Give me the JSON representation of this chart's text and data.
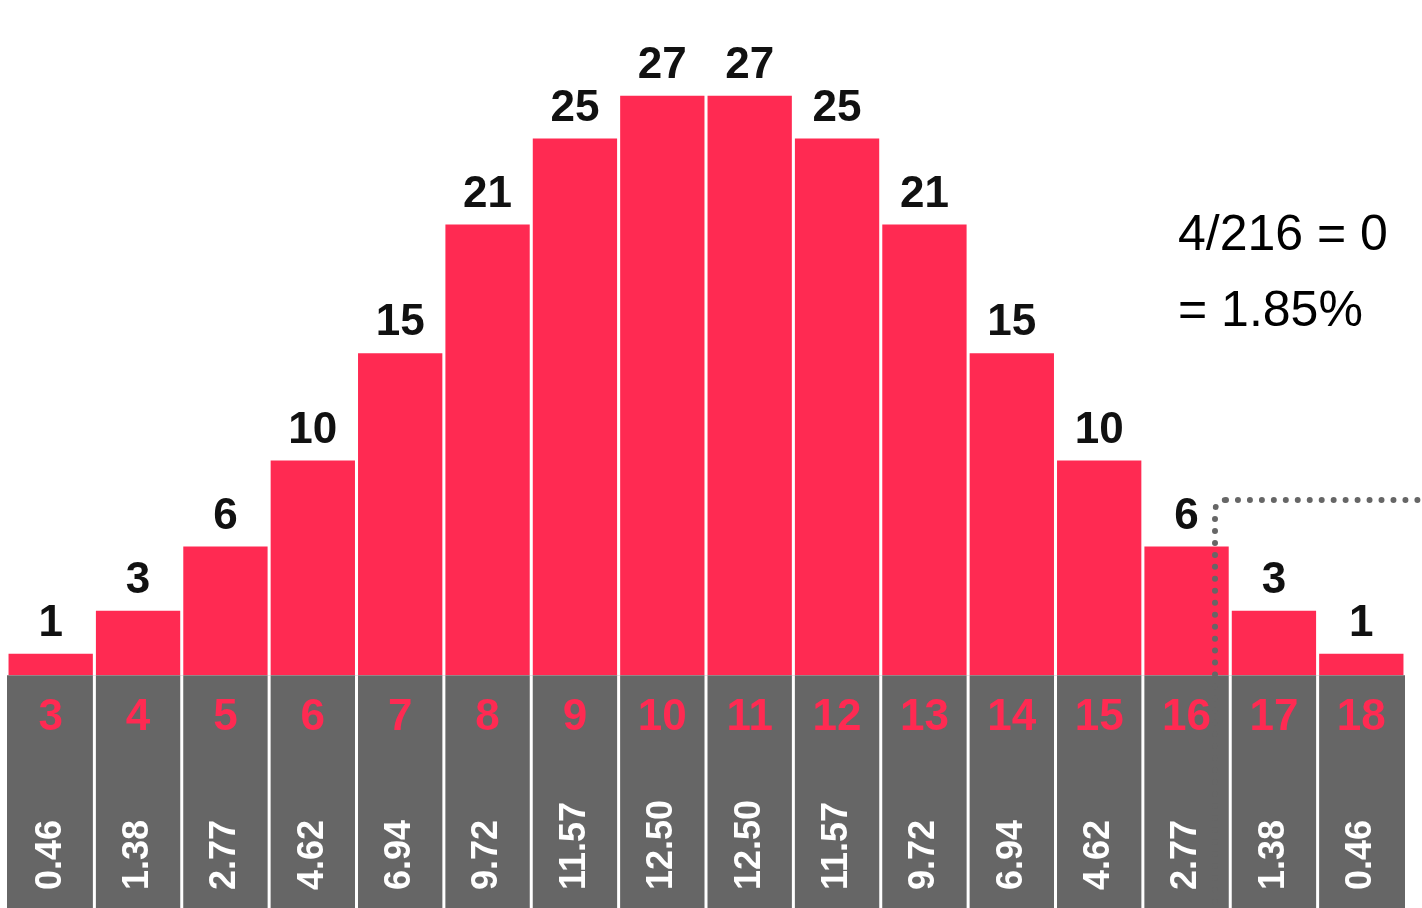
{
  "chart_data": {
    "type": "bar",
    "categories": [
      "3",
      "4",
      "5",
      "6",
      "7",
      "8",
      "9",
      "10",
      "11",
      "12",
      "13",
      "14",
      "15",
      "16",
      "17",
      "18"
    ],
    "values": [
      1,
      3,
      6,
      10,
      15,
      21,
      25,
      27,
      27,
      25,
      21,
      15,
      10,
      6,
      3,
      1
    ],
    "color": "#ff2a52",
    "data_labels": true,
    "grid": false,
    "legend": false,
    "annotations": [
      "0.46",
      "1.38",
      "2.77",
      "4.62",
      "6.94",
      "9.72",
      "11.57",
      "12.50",
      "12.50",
      "11.57",
      "9.72",
      "6.94",
      "4.62",
      "2.77",
      "1.38",
      "0.46",
      "4/216 = 0",
      "= 1.85%"
    ]
  }
}
